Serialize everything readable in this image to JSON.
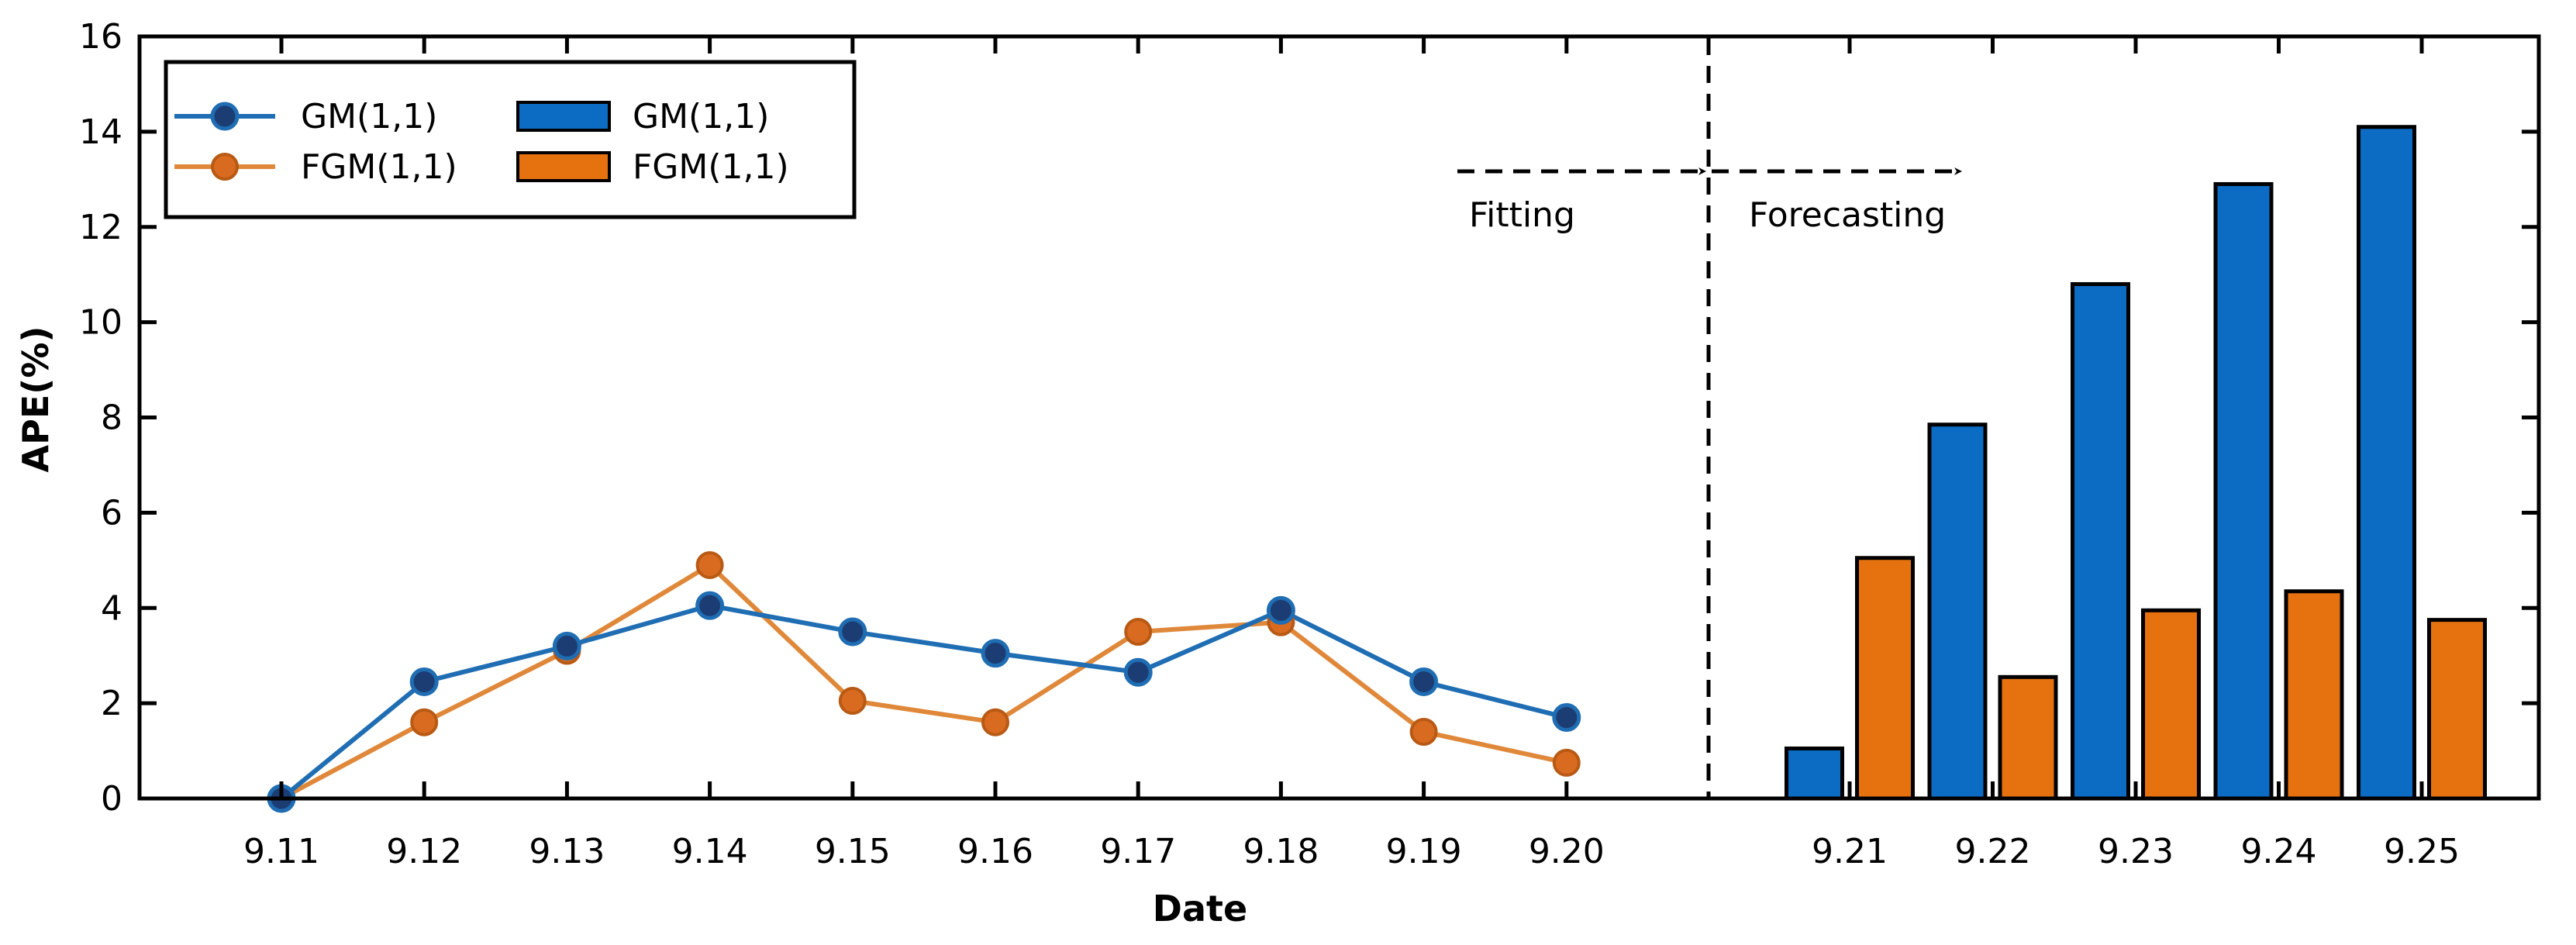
{
  "chart_data": {
    "type": "line",
    "xlabel": "Date",
    "ylabel": "APE(%)",
    "ylim": [
      0,
      16
    ],
    "yticks": [
      0,
      2,
      4,
      6,
      8,
      10,
      12,
      14,
      16
    ],
    "grid": false,
    "legend_position": "top-left",
    "fitting": {
      "categories": [
        "9.11",
        "9.12",
        "9.13",
        "9.14",
        "9.15",
        "9.16",
        "9.17",
        "9.18",
        "9.19",
        "9.20"
      ],
      "series": [
        {
          "name": "GM(1,1)",
          "type": "line",
          "color": "#1f6db3",
          "marker_fill": "#1c3d73",
          "values": [
            0,
            2.45,
            3.2,
            4.05,
            3.5,
            3.05,
            2.65,
            3.95,
            2.45,
            1.7
          ]
        },
        {
          "name": "FGM(1,1)",
          "type": "line",
          "color": "#e0883a",
          "marker_fill": "#d96b21",
          "values": [
            0,
            1.6,
            3.1,
            4.9,
            2.05,
            1.6,
            3.5,
            3.7,
            1.4,
            0.75
          ]
        }
      ]
    },
    "forecasting": {
      "categories": [
        "9.21",
        "9.22",
        "9.23",
        "9.24",
        "9.25"
      ],
      "series": [
        {
          "name": "GM(1,1)",
          "type": "bar",
          "color": "#0c6cc4",
          "values": [
            1.05,
            7.85,
            10.8,
            12.9,
            14.1
          ]
        },
        {
          "name": "FGM(1,1)",
          "type": "bar",
          "color": "#e5710f",
          "values": [
            5.05,
            2.55,
            3.95,
            4.35,
            3.75
          ]
        }
      ]
    },
    "annotations": {
      "fitting_label": "Fitting",
      "forecasting_label": "Forecasting"
    }
  }
}
